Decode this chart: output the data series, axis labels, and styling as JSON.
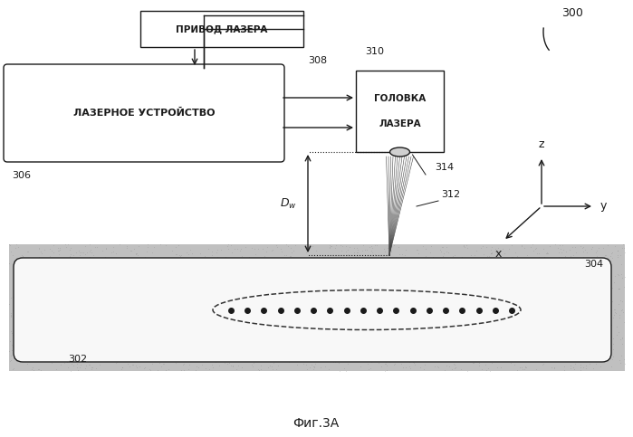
{
  "bg_color": "#ffffff",
  "fig_width": 6.99,
  "fig_height": 4.83,
  "dpi": 100,
  "title": "Фиг.3А",
  "label_300": "300",
  "label_302": "302",
  "label_304": "304",
  "label_306": "306",
  "label_308": "308",
  "label_310": "310",
  "label_312": "312",
  "label_314": "314",
  "box_laser_device_text": "ЛАЗЕРНОЕ УСТРОЙСТВО",
  "box_laser_drive_text": "ПРИВОД ЛАЗЕРА",
  "box_laser_head_line1": "ГОЛОВКА",
  "box_laser_head_line2": "ЛАЗЕРА",
  "line_color": "#1a1a1a",
  "box_fill": "#ffffff",
  "gray_color": "#b8b8b8"
}
